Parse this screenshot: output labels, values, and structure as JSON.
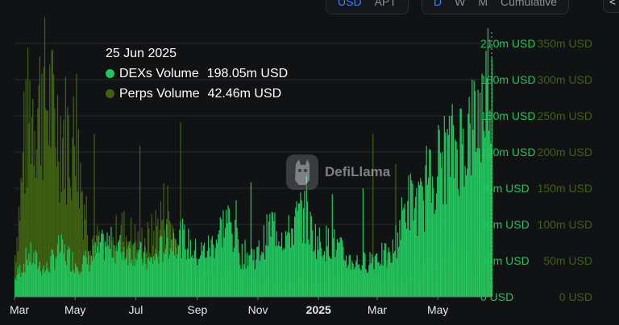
{
  "controls": {
    "currency": [
      {
        "label": "USD",
        "active": true
      },
      {
        "label": "APT",
        "active": false
      }
    ],
    "period": [
      {
        "label": "D",
        "active": true
      },
      {
        "label": "W",
        "active": false
      },
      {
        "label": "M",
        "active": false
      },
      {
        "label": "Cumulative",
        "active": false
      }
    ],
    "edge_button_label": "<"
  },
  "tooltip": {
    "date": "25 Jun 2025",
    "rows": [
      {
        "name": "DEXs Volume",
        "value": "198.05m USD",
        "color": "#22c55e"
      },
      {
        "name": "Perps Volume",
        "value": "42.46m USD",
        "color": "#3f6212"
      }
    ]
  },
  "watermark": {
    "text": "DefiLlama",
    "icon": "llama-logo-icon"
  },
  "chart_data": {
    "type": "bar",
    "stacked": true,
    "x_tick_labels": [
      "Mar",
      "May",
      "Jul",
      "Sep",
      "Nov",
      "2025",
      "Mar",
      "May"
    ],
    "x_range": [
      "2024-03-01",
      "2025-06-25"
    ],
    "y_axis_inner": {
      "ticks": [
        "0 USD",
        "30m USD",
        "60m USD",
        "90m USD",
        "120m USD",
        "150m USD",
        "180m USD",
        "210m USD"
      ],
      "range": [
        0,
        210
      ],
      "unit": "m USD",
      "color": "#22c55e"
    },
    "y_axis_outer": {
      "ticks": [
        "0 USD",
        "50m USD",
        "100m USD",
        "150m USD",
        "200m USD",
        "250m USD",
        "300m USD",
        "350m USD"
      ],
      "range": [
        0,
        350
      ],
      "unit": "m USD",
      "color": "#3f6212"
    },
    "grid": true,
    "series": [
      {
        "name": "DEXs Volume",
        "axis": "inner",
        "color": "#22c55e",
        "points": [
          [
            "2024-03-01",
            15
          ],
          [
            "2024-03-15",
            35
          ],
          [
            "2024-04-01",
            22
          ],
          [
            "2024-04-15",
            40
          ],
          [
            "2024-05-01",
            28
          ],
          [
            "2024-05-15",
            30
          ],
          [
            "2024-06-01",
            45
          ],
          [
            "2024-06-15",
            40
          ],
          [
            "2024-07-01",
            38
          ],
          [
            "2024-07-15",
            28
          ],
          [
            "2024-08-01",
            45
          ],
          [
            "2024-08-15",
            50
          ],
          [
            "2024-09-01",
            35
          ],
          [
            "2024-09-15",
            42
          ],
          [
            "2024-10-01",
            65
          ],
          [
            "2024-10-15",
            35
          ],
          [
            "2024-11-01",
            35
          ],
          [
            "2024-11-15",
            60
          ],
          [
            "2024-12-01",
            50
          ],
          [
            "2024-12-15",
            70
          ],
          [
            "2025-01-01",
            45
          ],
          [
            "2025-01-15",
            45
          ],
          [
            "2025-02-01",
            30
          ],
          [
            "2025-02-15",
            28
          ],
          [
            "2025-03-01",
            35
          ],
          [
            "2025-03-15",
            32
          ],
          [
            "2025-04-01",
            80
          ],
          [
            "2025-04-15",
            75
          ],
          [
            "2025-05-01",
            110
          ],
          [
            "2025-05-15",
            120
          ],
          [
            "2025-06-01",
            135
          ],
          [
            "2025-06-15",
            155
          ],
          [
            "2025-06-25",
            198.05
          ]
        ]
      },
      {
        "name": "Perps Volume",
        "axis": "inner",
        "color": "#3f6212",
        "points": [
          [
            "2024-03-01",
            35
          ],
          [
            "2024-03-15",
            155
          ],
          [
            "2024-04-01",
            165
          ],
          [
            "2024-04-15",
            140
          ],
          [
            "2024-05-01",
            125
          ],
          [
            "2024-05-15",
            55
          ],
          [
            "2024-06-01",
            30
          ],
          [
            "2024-06-15",
            55
          ],
          [
            "2024-07-01",
            45
          ],
          [
            "2024-07-15",
            45
          ],
          [
            "2024-08-01",
            75
          ],
          [
            "2024-08-15",
            30
          ],
          [
            "2024-09-01",
            25
          ],
          [
            "2024-09-15",
            20
          ],
          [
            "2024-10-01",
            15
          ],
          [
            "2024-10-15",
            20
          ],
          [
            "2024-11-01",
            10
          ],
          [
            "2024-11-15",
            10
          ],
          [
            "2024-12-01",
            10
          ],
          [
            "2024-12-15",
            15
          ],
          [
            "2025-01-01",
            10
          ],
          [
            "2025-01-15",
            15
          ],
          [
            "2025-02-01",
            20
          ],
          [
            "2025-02-15",
            15
          ],
          [
            "2025-03-01",
            15
          ],
          [
            "2025-03-15",
            25
          ],
          [
            "2025-04-01",
            15
          ],
          [
            "2025-04-15",
            20
          ],
          [
            "2025-05-01",
            20
          ],
          [
            "2025-05-15",
            30
          ],
          [
            "2025-06-01",
            30
          ],
          [
            "2025-06-15",
            30
          ],
          [
            "2025-06-25",
            42.46
          ]
        ]
      }
    ],
    "spikes": [
      {
        "series": "DEXs Volume",
        "date": "2024-10-10",
        "value": 80
      },
      {
        "series": "DEXs Volume",
        "date": "2024-10-25",
        "value": 95
      },
      {
        "series": "DEXs Volume",
        "date": "2024-12-20",
        "value": 100
      },
      {
        "series": "DEXs Volume",
        "date": "2025-01-15",
        "value": 85
      },
      {
        "series": "DEXs Volume",
        "date": "2025-02-15",
        "value": 90
      },
      {
        "series": "DEXs Volume",
        "date": "2025-04-20",
        "value": 125
      },
      {
        "series": "DEXs Volume",
        "date": "2025-05-15",
        "value": 150
      },
      {
        "series": "DEXs Volume",
        "date": "2025-06-05",
        "value": 180
      },
      {
        "series": "Perps Volume",
        "date": "2024-03-10",
        "value": 170
      },
      {
        "series": "Perps Volume",
        "date": "2024-03-28",
        "value": 185
      },
      {
        "series": "Perps Volume",
        "date": "2024-04-08",
        "value": 205
      },
      {
        "series": "Perps Volume",
        "date": "2024-05-02",
        "value": 185
      },
      {
        "series": "Perps Volume",
        "date": "2024-05-20",
        "value": 135
      },
      {
        "series": "Perps Volume",
        "date": "2024-07-05",
        "value": 125
      },
      {
        "series": "Perps Volume",
        "date": "2024-08-15",
        "value": 145
      },
      {
        "series": "Perps Volume",
        "date": "2025-02-25",
        "value": 135
      },
      {
        "series": "Perps Volume",
        "date": "2025-03-20",
        "value": 110
      }
    ],
    "crosshair_date": "2025-06-25"
  }
}
